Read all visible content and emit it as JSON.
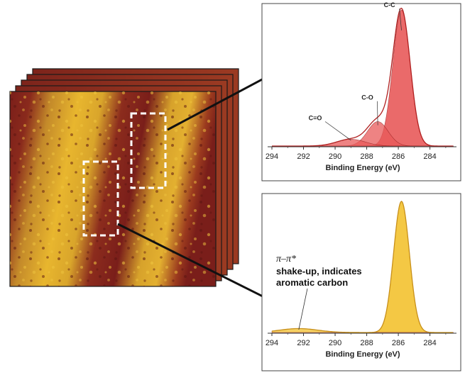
{
  "colors": {
    "map_dark": "#7a1e1a",
    "map_light": "#e8b62e",
    "panel_top_fill": "#e85a5a",
    "panel_bottom_fill": "#f3c230",
    "roi_box": "#ffffff",
    "arrow": "#111111"
  },
  "image_stack": {
    "frame_count": 5
  },
  "chart_data": [
    {
      "type": "area",
      "xlabel": "Binding Energy (eV)",
      "ylabel": "",
      "title": "",
      "xlim": [
        294,
        282.5
      ],
      "x_reversed": true,
      "ylim": [
        0,
        1
      ],
      "xticks": [
        294,
        292,
        290,
        288,
        286,
        284
      ],
      "tick_labels": [
        "294",
        "292",
        "290",
        "288",
        "286",
        "284"
      ],
      "components": [
        {
          "label": "C-C",
          "center": 285.8,
          "width": 0.55,
          "amplitude": 1.0
        },
        {
          "label": "C-O",
          "center": 287.3,
          "width": 0.65,
          "amplitude": 0.18
        },
        {
          "label": "C=O",
          "center": 289.0,
          "width": 0.9,
          "amplitude": 0.05
        }
      ],
      "peak_labels": [
        {
          "text": "C-C",
          "x": 286.2,
          "y": 1.02
        },
        {
          "text": "C-O",
          "x": 287.6,
          "y": 0.34
        },
        {
          "text": "C=O",
          "x": 290.9,
          "y": 0.19
        }
      ]
    },
    {
      "type": "area",
      "xlabel": "Binding Energy (eV)",
      "ylabel": "",
      "title": "",
      "xlim": [
        294,
        282.5
      ],
      "x_reversed": true,
      "ylim": [
        0,
        1
      ],
      "xticks": [
        294,
        292,
        290,
        288,
        286,
        284
      ],
      "tick_labels": [
        "294",
        "292",
        "290",
        "288",
        "286",
        "284"
      ],
      "components": [
        {
          "label": "",
          "center": 285.8,
          "width": 0.5,
          "amplitude": 1.0
        },
        {
          "label": "π–π*",
          "center": 292.3,
          "width": 1.2,
          "amplitude": 0.03
        }
      ],
      "annotation": {
        "symbol": "π–π*",
        "line1": "shake-up, indicates",
        "line2": "aromatic carbon"
      }
    }
  ]
}
